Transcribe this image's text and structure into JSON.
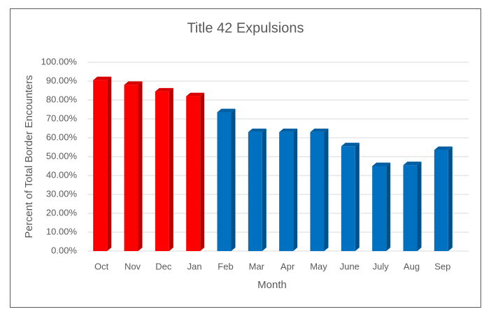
{
  "chart_data": {
    "type": "bar3d",
    "title": "Title 42 Expulsions",
    "x_label": "Month",
    "y_label": "Percent of Total Border Encounters",
    "categories": [
      "Oct",
      "Nov",
      "Dec",
      "Jan",
      "Feb",
      "Mar",
      "Apr",
      "May",
      "June",
      "July",
      "Aug",
      "Sep"
    ],
    "values": [
      90.5,
      88,
      84.5,
      82,
      73.5,
      63,
      63,
      63,
      55.5,
      45,
      45.5,
      53.5
    ],
    "colors": [
      "#ff0000",
      "#ff0000",
      "#ff0000",
      "#ff0000",
      "#0070c0",
      "#0070c0",
      "#0070c0",
      "#0070c0",
      "#0070c0",
      "#0070c0",
      "#0070c0",
      "#0070c0"
    ],
    "ylim": [
      0,
      100
    ],
    "yticks": [
      {
        "value": 0,
        "label": "0.00%"
      },
      {
        "value": 10,
        "label": "10.00%"
      },
      {
        "value": 20,
        "label": "20.00%"
      },
      {
        "value": 30,
        "label": "30.00%"
      },
      {
        "value": 40,
        "label": "40.00%"
      },
      {
        "value": 50,
        "label": "50.00%"
      },
      {
        "value": 60,
        "label": "60.00%"
      },
      {
        "value": 70,
        "label": "70.00%"
      },
      {
        "value": 80,
        "label": "80.00%"
      },
      {
        "value": 90,
        "label": "90.00%"
      },
      {
        "value": 100,
        "label": "100.00%"
      }
    ],
    "grid": true
  }
}
